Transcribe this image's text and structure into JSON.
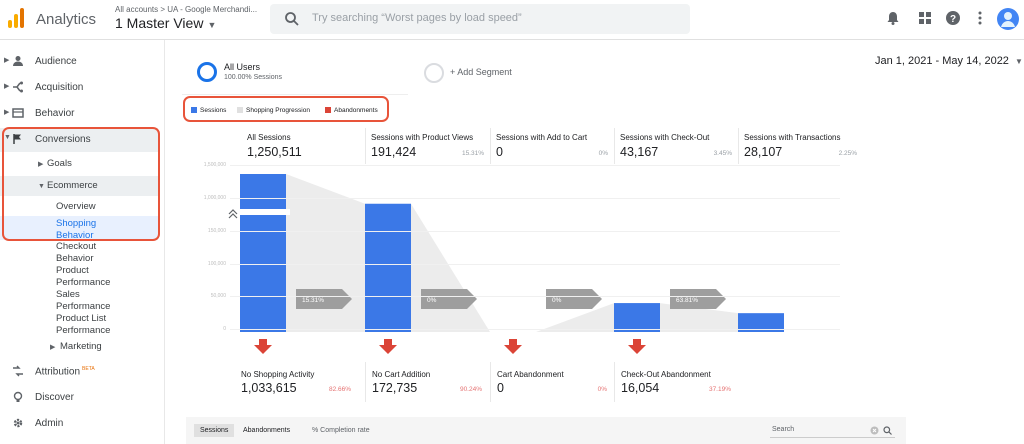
{
  "header": {
    "app_name": "Analytics",
    "breadcrumb": "All accounts > UA - Google Merchandi...",
    "view": "1 Master View",
    "search_placeholder": "Try searching “Worst pages by load speed”",
    "icons": [
      "bell-icon",
      "apps-icon",
      "help-icon",
      "more-vert-icon",
      "account-icon"
    ]
  },
  "sidebar": {
    "items": [
      {
        "label": "Audience",
        "icon": "person-icon"
      },
      {
        "label": "Acquisition",
        "icon": "acquisition-icon"
      },
      {
        "label": "Behavior",
        "icon": "behavior-icon"
      },
      {
        "label": "Conversions",
        "icon": "flag-icon"
      }
    ],
    "conversions_children": {
      "goals": "Goals",
      "ecommerce": "Ecommerce",
      "overview": "Overview",
      "shopping_behavior": "Shopping",
      "shopping_behavior_2": "Behavior",
      "checkout": "Checkout",
      "checkout_2": "Behavior",
      "product": "Product",
      "product_2": "Performance",
      "sales": "Sales",
      "sales_2": "Performance",
      "product_list": "Product List",
      "product_list_2": "Performance",
      "marketing": "Marketing"
    },
    "bottom": [
      {
        "label": "Attribution",
        "badge": "BETA",
        "icon": "attribution-icon"
      },
      {
        "label": "Discover",
        "icon": "lightbulb-icon"
      },
      {
        "label": "Admin",
        "icon": "gear-icon"
      }
    ]
  },
  "segments": {
    "active_title": "All Users",
    "active_sub": "100.00% Sessions",
    "add_label": "+ Add Segment"
  },
  "date_range": "Jan 1, 2021 - May 14, 2022",
  "legend": {
    "sessions": "Sessions",
    "progression": "Shopping Progression",
    "abandonments": "Abandonments",
    "colors": {
      "sessions": "#3b78e7",
      "progression": "#e0e0e0",
      "abandonments": "#db4437"
    }
  },
  "chart_data": {
    "type": "bar",
    "categories": [
      "All Sessions",
      "Sessions with Product Views",
      "Sessions with Add to Cart",
      "Sessions with Check-Out",
      "Sessions with Transactions"
    ],
    "series": [
      {
        "values": [
          1250511,
          191424,
          0,
          43167,
          28107
        ]
      }
    ],
    "pct": [
      "",
      "15.31%",
      "0%",
      "3.45%",
      "2.25%"
    ],
    "values_display": [
      "1,250,511",
      "191,424",
      "0",
      "43,167",
      "28,107"
    ],
    "progression": [
      "15.31%",
      "0%",
      "0%",
      "63.81%"
    ],
    "yticks": [
      "1,500,000",
      "1,000,000",
      "150,000",
      "100,000",
      "50,000",
      "0"
    ],
    "abandonments": [
      {
        "label": "No Shopping Activity",
        "value": "1,033,615",
        "pct": "82.66%"
      },
      {
        "label": "No Cart Addition",
        "value": "172,735",
        "pct": "90.24%"
      },
      {
        "label": "Cart Abandonment",
        "value": "0",
        "pct": "0%"
      },
      {
        "label": "Check-Out Abandonment",
        "value": "16,054",
        "pct": "37.19%"
      }
    ]
  },
  "bottom_tabs": {
    "sessions": "Sessions",
    "abandonments": "Abandonments",
    "completion": "% Completion rate",
    "search": "Search"
  }
}
